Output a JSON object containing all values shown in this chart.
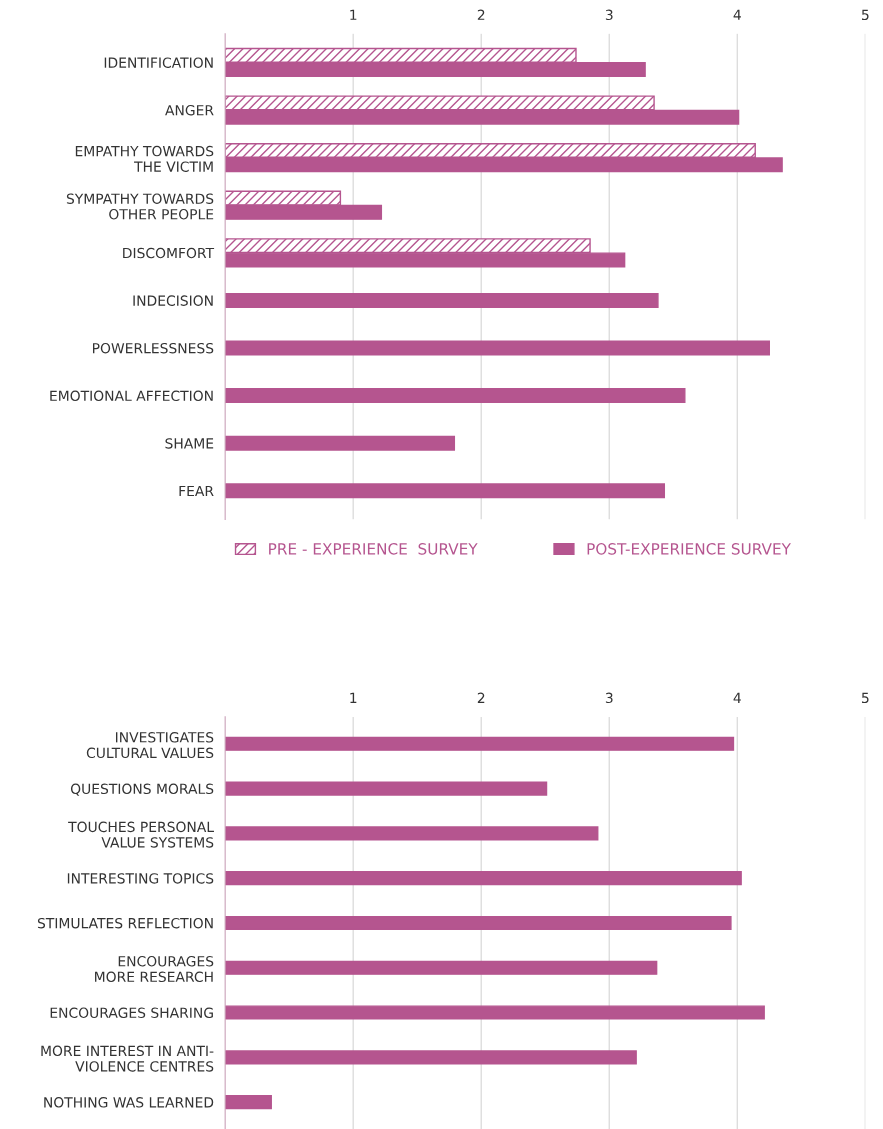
{
  "chart_data": [
    {
      "type": "bar",
      "orientation": "horizontal",
      "categories": [
        "IDENTIFICATION",
        "ANGER",
        "EMPATHY TOWARDS\nTHE VICTIM",
        "SYMPATHY TOWARDS\nOTHER PEOPLE",
        "DISCOMFORT",
        "INDECISION",
        "POWERLESSNESS",
        "EMOTIONAL AFFECTION",
        "SHAME",
        "FEAR"
      ],
      "series": [
        {
          "name": "PRE - EXPERIENCE  SURVEY",
          "color": "#b5558f",
          "values": [
            2.74,
            3.35,
            4.14,
            0.9,
            2.85,
            null,
            null,
            null,
            null,
            null
          ]
        },
        {
          "name": "POST-EXPERIENCE SURVEY",
          "color": "#b5558f",
          "values": [
            3.28,
            4.01,
            4.35,
            1.22,
            3.12,
            3.38,
            4.25,
            3.59,
            1.79,
            3.43
          ]
        }
      ],
      "xlim": [
        0,
        5
      ],
      "xticks": [
        1,
        2,
        3,
        4,
        5
      ],
      "grid": "x",
      "legend": "bottom"
    },
    {
      "type": "bar",
      "orientation": "horizontal",
      "categories": [
        "INVESTIGATES\nCULTURAL VALUES",
        "QUESTIONS MORALS",
        "TOUCHES PERSONAL\nVALUE SYSTEMS",
        "INTERESTING TOPICS",
        "STIMULATES REFLECTION",
        "ENCOURAGES\nMORE RESEARCH",
        "ENCOURAGES SHARING",
        "MORE INTEREST IN ANTI-\nVIOLENCE CENTRES",
        "NOTHING WAS LEARNED"
      ],
      "series": [
        {
          "color": "#b5558f",
          "values": [
            3.97,
            2.51,
            2.91,
            4.03,
            3.95,
            3.37,
            4.21,
            3.21,
            0.36
          ]
        }
      ],
      "xlim": [
        0,
        5
      ],
      "xticks": [
        1,
        2,
        3,
        4,
        5
      ],
      "grid": "x",
      "legend": false
    }
  ]
}
